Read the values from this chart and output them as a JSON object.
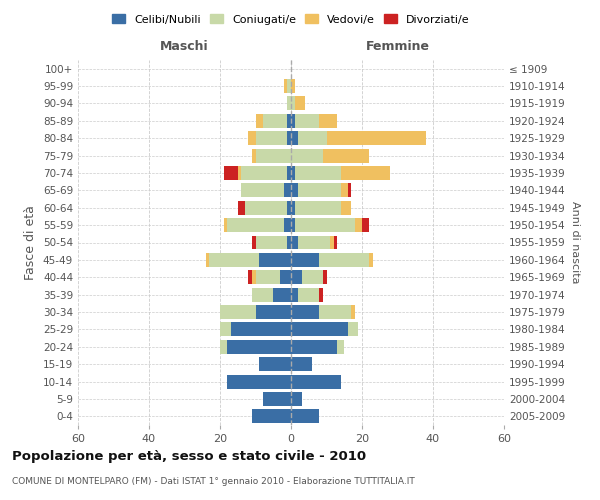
{
  "age_groups": [
    "100+",
    "95-99",
    "90-94",
    "85-89",
    "80-84",
    "75-79",
    "70-74",
    "65-69",
    "60-64",
    "55-59",
    "50-54",
    "45-49",
    "40-44",
    "35-39",
    "30-34",
    "25-29",
    "20-24",
    "15-19",
    "10-14",
    "5-9",
    "0-4"
  ],
  "birth_years": [
    "≤ 1909",
    "1910-1914",
    "1915-1919",
    "1920-1924",
    "1925-1929",
    "1930-1934",
    "1935-1939",
    "1940-1944",
    "1945-1949",
    "1950-1954",
    "1955-1959",
    "1960-1964",
    "1965-1969",
    "1970-1974",
    "1975-1979",
    "1980-1984",
    "1985-1989",
    "1990-1994",
    "1995-1999",
    "2000-2004",
    "2005-2009"
  ],
  "maschi": {
    "celibi": [
      0,
      0,
      0,
      1,
      1,
      0,
      1,
      2,
      1,
      2,
      1,
      9,
      3,
      5,
      10,
      17,
      18,
      9,
      18,
      8,
      11
    ],
    "coniugati": [
      0,
      1,
      1,
      7,
      9,
      10,
      13,
      12,
      12,
      16,
      9,
      14,
      7,
      6,
      10,
      3,
      2,
      0,
      0,
      0,
      0
    ],
    "vedovi": [
      0,
      1,
      0,
      2,
      2,
      1,
      1,
      0,
      0,
      1,
      0,
      1,
      1,
      0,
      0,
      0,
      0,
      0,
      0,
      0,
      0
    ],
    "divorziati": [
      0,
      0,
      0,
      0,
      0,
      0,
      4,
      0,
      2,
      0,
      1,
      0,
      1,
      0,
      0,
      0,
      0,
      0,
      0,
      0,
      0
    ]
  },
  "femmine": {
    "nubili": [
      0,
      0,
      0,
      1,
      2,
      0,
      1,
      2,
      1,
      1,
      2,
      8,
      3,
      2,
      8,
      16,
      13,
      6,
      14,
      3,
      8
    ],
    "coniugate": [
      0,
      0,
      1,
      7,
      8,
      9,
      13,
      12,
      13,
      17,
      9,
      14,
      6,
      6,
      9,
      3,
      2,
      0,
      0,
      0,
      0
    ],
    "vedove": [
      0,
      1,
      3,
      5,
      28,
      13,
      14,
      2,
      3,
      2,
      1,
      1,
      0,
      0,
      1,
      0,
      0,
      0,
      0,
      0,
      0
    ],
    "divorziate": [
      0,
      0,
      0,
      0,
      0,
      0,
      0,
      1,
      0,
      2,
      1,
      0,
      1,
      1,
      0,
      0,
      0,
      0,
      0,
      0,
      0
    ]
  },
  "colors": {
    "celibi_nubili": "#3a6ea5",
    "coniugati_e": "#c8d9a8",
    "vedovi_e": "#f0c060",
    "divorziati_e": "#cc2222"
  },
  "title": "Popolazione per età, sesso e stato civile - 2010",
  "subtitle": "COMUNE DI MONTELPARO (FM) - Dati ISTAT 1° gennaio 2010 - Elaborazione TUTTITALIA.IT",
  "ylabel_left": "Fasce di età",
  "ylabel_right": "Anni di nascita",
  "xlabel_maschi": "Maschi",
  "xlabel_femmine": "Femmine",
  "xlim": 60,
  "legend_labels": [
    "Celibi/Nubili",
    "Coniugati/e",
    "Vedovi/e",
    "Divorziati/e"
  ],
  "bar_height": 0.8,
  "background_color": "#ffffff",
  "grid_color": "#cccccc"
}
